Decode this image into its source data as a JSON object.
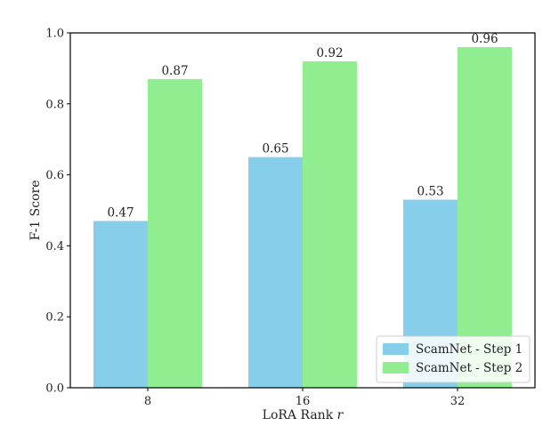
{
  "chart_data": {
    "type": "bar",
    "title": "",
    "xlabel": "LoRA Rank r",
    "ylabel": "F-1 Score",
    "categories": [
      "8",
      "16",
      "32"
    ],
    "series": [
      {
        "name": "ScamNet - Step 1",
        "values": [
          0.47,
          0.65,
          0.53
        ],
        "color": "#87CEEB"
      },
      {
        "name": "ScamNet - Step 2",
        "values": [
          0.87,
          0.92,
          0.96
        ],
        "color": "#90EE90"
      }
    ],
    "data_labels": [
      [
        "0.47",
        "0.65",
        "0.53"
      ],
      [
        "0.87",
        "0.92",
        "0.96"
      ]
    ],
    "ylim": [
      0,
      1.0
    ],
    "yticks": [
      "0.0",
      "0.2",
      "0.4",
      "0.6",
      "0.8",
      "1.0"
    ],
    "grid": false,
    "legend_position": "bottom-right"
  }
}
